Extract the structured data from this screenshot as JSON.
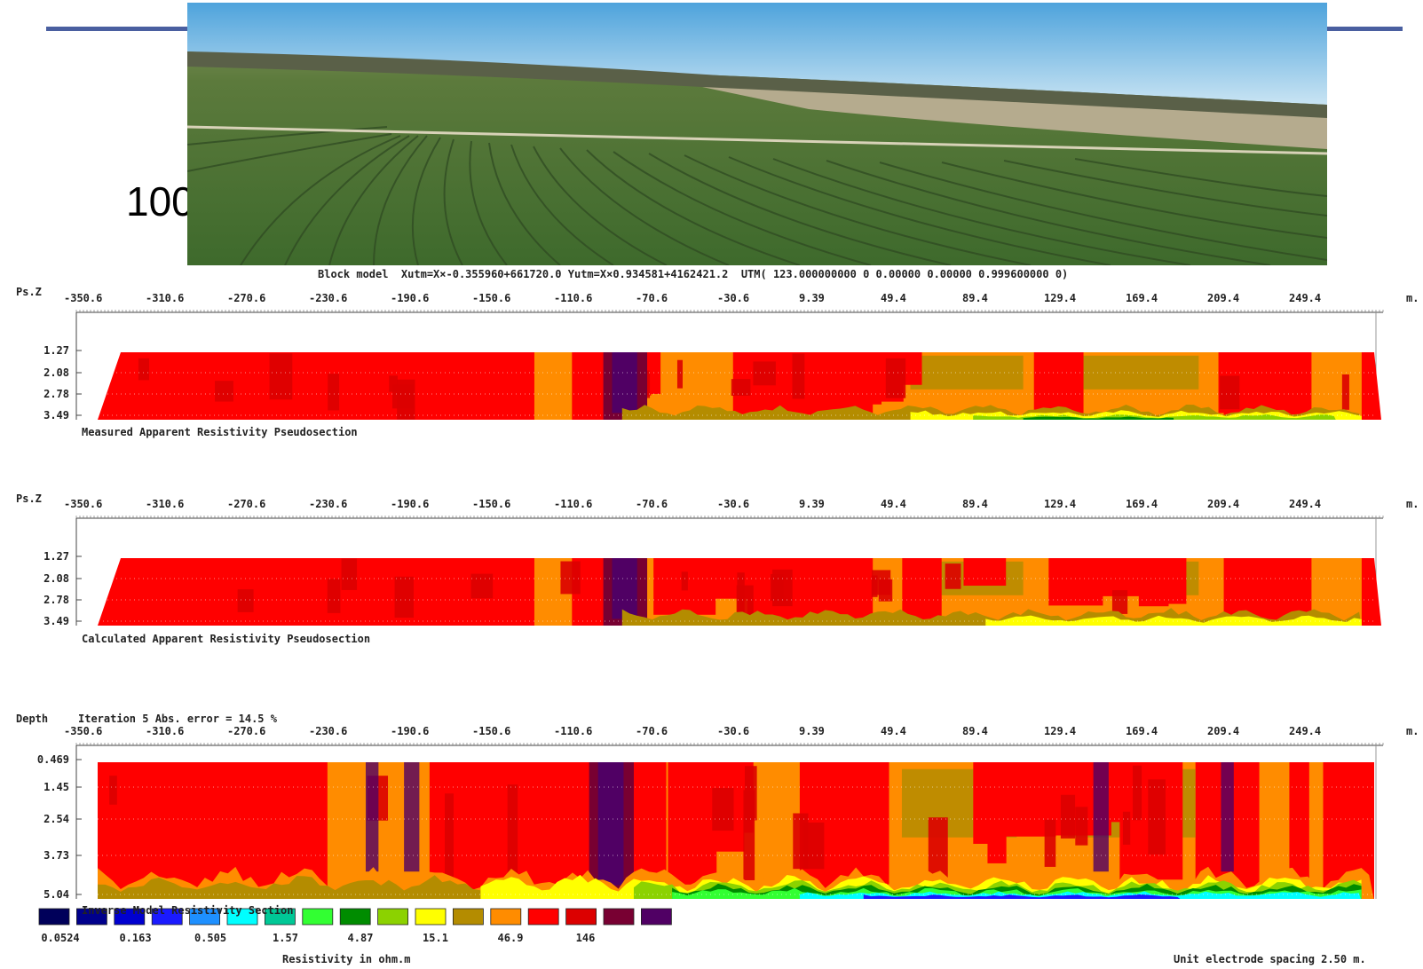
{
  "slide": {
    "partial_text": "100"
  },
  "header": {
    "block_model_line": "Block model  Xutm=X×-0.355960+661720.0 Yutm=X×0.934581+4162421.2  UTM( 123.000000000 0 0.00000 0.00000 0.999600000 0)"
  },
  "x_ticks": [
    "-350.6",
    "-310.6",
    "-270.6",
    "-230.6",
    "-190.6",
    "-150.6",
    "-110.6",
    "-70.6",
    "-30.6",
    "9.39",
    "49.4",
    "89.4",
    "129.4",
    "169.4",
    "209.4",
    "249.4"
  ],
  "x_unit": "m.",
  "panels": [
    {
      "id": "measured",
      "axis_title": "Ps.Z",
      "y_ticks": [
        "1.27",
        "2.08",
        "2.78",
        "3.49"
      ],
      "caption": "Measured Apparent Resistivity Pseudosection"
    },
    {
      "id": "calculated",
      "axis_title": "Ps.Z",
      "y_ticks": [
        "1.27",
        "2.08",
        "2.78",
        "3.49"
      ],
      "caption": "Calculated Apparent Resistivity Pseudosection"
    },
    {
      "id": "inverse",
      "axis_title": "Depth",
      "iteration_text": "Iteration 5 Abs. error = 14.5 %",
      "y_ticks": [
        "0.469",
        "1.45",
        "2.54",
        "3.73",
        "5.04"
      ],
      "caption": "Inverse Model Resistivity Section"
    }
  ],
  "legend": {
    "colors": [
      "#00005a",
      "#00008c",
      "#0000d0",
      "#1a1aff",
      "#1e90ff",
      "#00ffff",
      "#00c896",
      "#32ff32",
      "#008c00",
      "#8cd200",
      "#ffff00",
      "#b48c00",
      "#ff8c00",
      "#ff0000",
      "#dc0000",
      "#780032",
      "#500064"
    ],
    "values": [
      "0.0524",
      "0.163",
      "0.505",
      "1.57",
      "4.87",
      "15.1",
      "46.9",
      "146"
    ],
    "title": "Resistivity in ohm.m"
  },
  "footer": {
    "spacing_note": "Unit electrode spacing 2.50 m."
  },
  "chart_data": {
    "type": "heatmap",
    "x_axis_ticks": [
      -350.6,
      -310.6,
      -270.6,
      -230.6,
      -190.6,
      -150.6,
      -110.6,
      -70.6,
      -30.6,
      9.39,
      49.4,
      89.4,
      129.4,
      169.4,
      209.4,
      249.4
    ],
    "colorbar_values": [
      0.0524,
      0.163,
      0.505,
      1.57,
      4.87,
      15.1,
      46.9,
      146
    ],
    "colorbar_label": "Resistivity in ohm.m",
    "sections": [
      {
        "title": "Measured Apparent Resistivity Pseudosection",
        "y_label": "Ps.Z",
        "y_ticks": [
          1.27,
          2.08,
          2.78,
          3.49
        ]
      },
      {
        "title": "Calculated Apparent Resistivity Pseudosection",
        "y_label": "Ps.Z",
        "y_ticks": [
          1.27,
          2.08,
          2.78,
          3.49
        ]
      },
      {
        "title": "Inverse Model Resistivity Section",
        "y_label": "Depth",
        "y_ticks": [
          0.469,
          1.45,
          2.54,
          3.73,
          5.04
        ],
        "iteration": 5,
        "abs_error_percent": 14.5
      }
    ]
  }
}
